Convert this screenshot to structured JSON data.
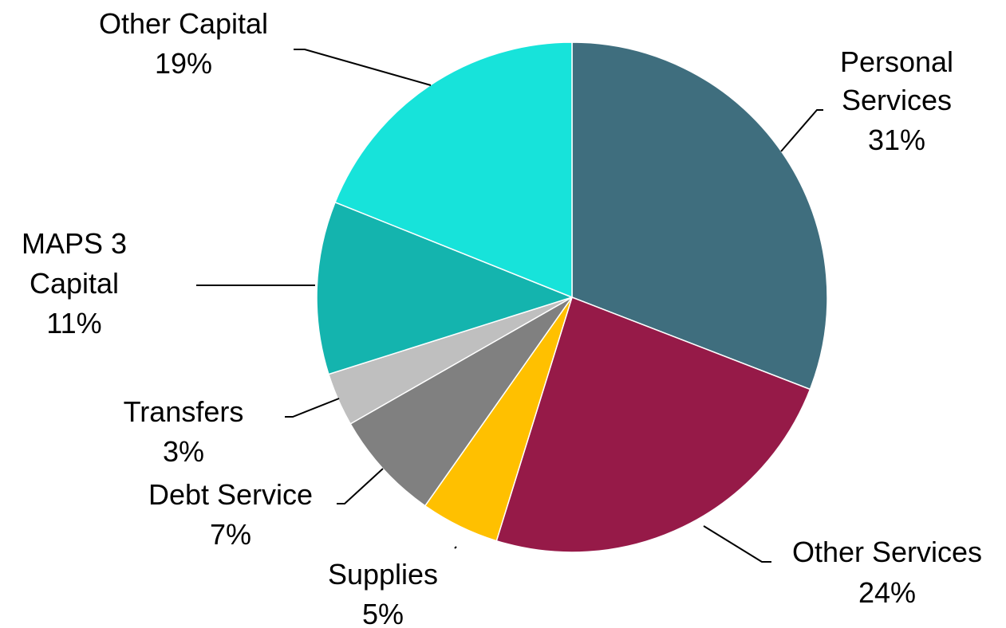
{
  "chart_data": {
    "type": "pie",
    "title": "",
    "start_angle_deg": 0,
    "direction": "clockwise",
    "slices": [
      {
        "label": [
          "Personal",
          "Services"
        ],
        "percent_label": "31%",
        "value": 31,
        "color": "#3F6E7E"
      },
      {
        "label": [
          "Other Services"
        ],
        "percent_label": "24%",
        "value": 24,
        "color": "#961A48"
      },
      {
        "label": [
          "Supplies"
        ],
        "percent_label": "5%",
        "value": 5,
        "color": "#FFC000"
      },
      {
        "label": [
          "Debt Service"
        ],
        "percent_label": "7%",
        "value": 7,
        "color": "#808080"
      },
      {
        "label": [
          "Transfers"
        ],
        "percent_label": "3%",
        "value": 3.4,
        "color": "#BFBFBF"
      },
      {
        "label": [
          "MAPS 3",
          "Capital"
        ],
        "percent_label": "11%",
        "value": 11,
        "color": "#14B4AE"
      },
      {
        "label": [
          "Other Capital"
        ],
        "percent_label": "19%",
        "value": 19,
        "color": "#17E3DA"
      }
    ]
  }
}
